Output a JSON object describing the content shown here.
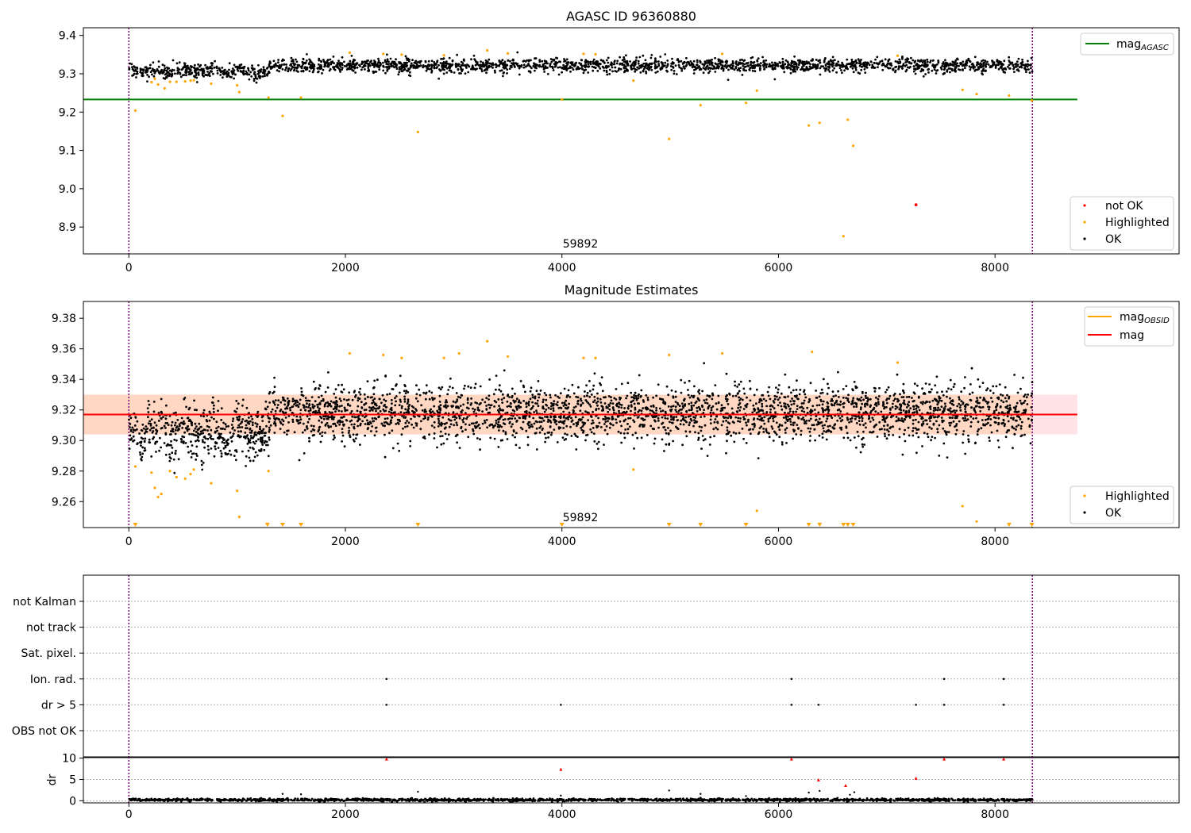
{
  "colors": {
    "ok": "#000000",
    "highlighted": "#ffa500",
    "not_ok": "#ff0000",
    "agasc_line": "#008000",
    "obsid_line": "#ffa500",
    "mag_line": "#ff0000",
    "obs_boundary": "#800080",
    "band_red": "#ffc0c8",
    "band_orange": "#ffd2b4"
  },
  "chart_data": [
    {
      "type": "scatter",
      "title": "AGASC ID 96360880",
      "xlabel": "",
      "ylabel": "",
      "xlim": [
        -420,
        9700
      ],
      "ylim": [
        8.83,
        9.42
      ],
      "xticks": [
        0,
        2000,
        4000,
        6000,
        8000
      ],
      "yticks": [
        8.9,
        9.0,
        9.1,
        9.2,
        9.3,
        9.4
      ],
      "ytick_decimals": 1,
      "obs_boundaries": [
        0,
        8345
      ],
      "annotation": {
        "text": "59892",
        "x": 4000,
        "y": 8.845
      },
      "hline": {
        "name": "mag_AGASC",
        "value": 9.233,
        "x": [
          -420,
          8760
        ]
      },
      "ok_series": {
        "name": "OK",
        "x_range": [
          0,
          8345
        ],
        "baseline": 9.322,
        "scatter": 0.009,
        "count": 2400,
        "early_dip": {
          "x_range": [
            0,
            1300
          ],
          "offset": -0.018
        }
      },
      "highlighted": {
        "name": "Highlighted",
        "x": [
          60,
          210,
          240,
          270,
          330,
          380,
          440,
          520,
          570,
          600,
          760,
          1000,
          1020,
          1290,
          1420,
          1590,
          2040,
          2350,
          2520,
          2670,
          2910,
          3310,
          3500,
          4000,
          4200,
          4310,
          4660,
          4990,
          5280,
          5480,
          5700,
          5800,
          6280,
          6380,
          6600,
          6640,
          6690,
          7100,
          7700,
          7830,
          8130,
          8340
        ],
        "y": [
          9.204,
          9.278,
          9.287,
          9.272,
          9.262,
          9.279,
          9.279,
          9.28,
          9.282,
          9.283,
          9.274,
          9.27,
          9.252,
          9.238,
          9.19,
          9.238,
          9.355,
          9.352,
          9.35,
          9.148,
          9.348,
          9.361,
          9.353,
          9.233,
          9.352,
          9.351,
          9.282,
          9.13,
          9.218,
          9.352,
          9.224,
          9.256,
          9.165,
          9.172,
          8.876,
          9.18,
          9.112,
          9.347,
          9.258,
          9.247,
          9.243,
          9.23
        ]
      },
      "not_ok": {
        "name": "not OK",
        "x": [
          7270
        ],
        "y": [
          8.958
        ]
      },
      "legend_upper": [
        "mag_AGASC"
      ],
      "legend_lower": [
        "not OK",
        "Highlighted",
        "OK"
      ]
    },
    {
      "type": "scatter",
      "title": "Magnitude Estimates",
      "xlabel": "",
      "ylabel": "",
      "xlim": [
        -420,
        9700
      ],
      "ylim": [
        9.243,
        9.391
      ],
      "xticks": [
        0,
        2000,
        4000,
        6000,
        8000
      ],
      "yticks": [
        9.26,
        9.28,
        9.3,
        9.32,
        9.34,
        9.36,
        9.38
      ],
      "ytick_decimals": 2,
      "obs_boundaries": [
        0,
        8345
      ],
      "annotation": {
        "text": "59892",
        "x": 4000,
        "y": 9.245
      },
      "mag_line": {
        "name": "mag",
        "value": 9.317,
        "x": [
          -420,
          8760
        ],
        "band": [
          9.304,
          9.33
        ]
      },
      "obsid_line": {
        "name": "mag_OBSID",
        "value": 9.317,
        "x": [
          -420,
          8345
        ],
        "band": [
          9.304,
          9.33
        ]
      },
      "ok_series": {
        "name": "OK",
        "x_range": [
          0,
          8345
        ],
        "baseline": 9.318,
        "scatter": 0.009,
        "count": 3400,
        "early_dip": {
          "x_range": [
            0,
            1300
          ],
          "offset": -0.016
        }
      },
      "highlighted": {
        "name": "Highlighted",
        "x": [
          60,
          210,
          240,
          270,
          300,
          380,
          440,
          520,
          570,
          600,
          760,
          1000,
          1020,
          1290,
          2040,
          2350,
          2520,
          2910,
          3050,
          3310,
          3500,
          4200,
          4310,
          4660,
          4990,
          5480,
          5800,
          6310,
          7100,
          7700,
          7830
        ],
        "y": [
          9.283,
          9.279,
          9.269,
          9.263,
          9.265,
          9.28,
          9.276,
          9.275,
          9.278,
          9.281,
          9.272,
          9.267,
          9.25,
          9.28,
          9.357,
          9.356,
          9.354,
          9.354,
          9.357,
          9.365,
          9.355,
          9.354,
          9.354,
          9.281,
          9.356,
          9.357,
          9.254,
          9.358,
          9.351,
          9.257,
          9.247
        ]
      },
      "offscale_markers": {
        "x": [
          60,
          1280,
          1420,
          1590,
          2670,
          4000,
          4990,
          5280,
          5700,
          6280,
          6380,
          6600,
          6640,
          6690,
          8130,
          8340
        ]
      },
      "legend_upper": [
        "mag_OBSID",
        "mag"
      ],
      "legend_lower": [
        "Highlighted",
        "OK"
      ]
    },
    {
      "type": "scatter",
      "title": "",
      "xlim": [
        -420,
        9700
      ],
      "xticks": [
        0,
        2000,
        4000,
        6000,
        8000
      ],
      "obs_boundaries": [
        0,
        8345
      ],
      "flag_categories": [
        "not Kalman",
        "not track",
        "Sat. pixel.",
        "Ion. rad.",
        "dr > 5",
        "OBS not OK"
      ],
      "flags": {
        "Ion. rad.": [
          2380,
          6120,
          7530,
          8080
        ],
        "dr > 5": [
          2380,
          3990,
          6120,
          6370,
          7270,
          7530,
          8080
        ]
      }
    },
    {
      "type": "scatter",
      "title": "",
      "ylabel": "dr",
      "xlim": [
        -420,
        9700
      ],
      "ylim": [
        -0.5,
        10.3
      ],
      "xticks": [
        0,
        2000,
        4000,
        6000,
        8000
      ],
      "yticks": [
        0,
        5,
        10
      ],
      "ytick_decimals": 0,
      "obs_boundaries": [
        0,
        8345
      ],
      "ok_series": {
        "name": "OK",
        "x_range": [
          0,
          8345
        ],
        "baseline": 0.2,
        "scatter": 0.15,
        "count": 1800
      },
      "extra_points": {
        "x": [
          1420,
          1590,
          2670,
          3990,
          4990,
          5280,
          5700,
          6280,
          6380,
          6660,
          6700
        ],
        "y": [
          1.6,
          1.5,
          2.1,
          1.2,
          2.4,
          1.6,
          1.1,
          1.9,
          2.3,
          1.4,
          2.0
        ]
      },
      "not_ok": {
        "name": "not OK",
        "x": [
          2380,
          3990,
          6120,
          6370,
          6620,
          7270,
          7530,
          8080
        ],
        "y": [
          9.8,
          7.4,
          9.8,
          4.9,
          3.6,
          5.3,
          9.8,
          9.8
        ]
      }
    }
  ],
  "legend_labels": {
    "mag_agasc_main": "mag",
    "mag_agasc_sub": "AGASC",
    "mag_obsid_main": "mag",
    "mag_obsid_sub": "OBSID",
    "mag": "mag",
    "not_ok": "not OK",
    "highlighted": "Highlighted",
    "ok": "OK"
  }
}
